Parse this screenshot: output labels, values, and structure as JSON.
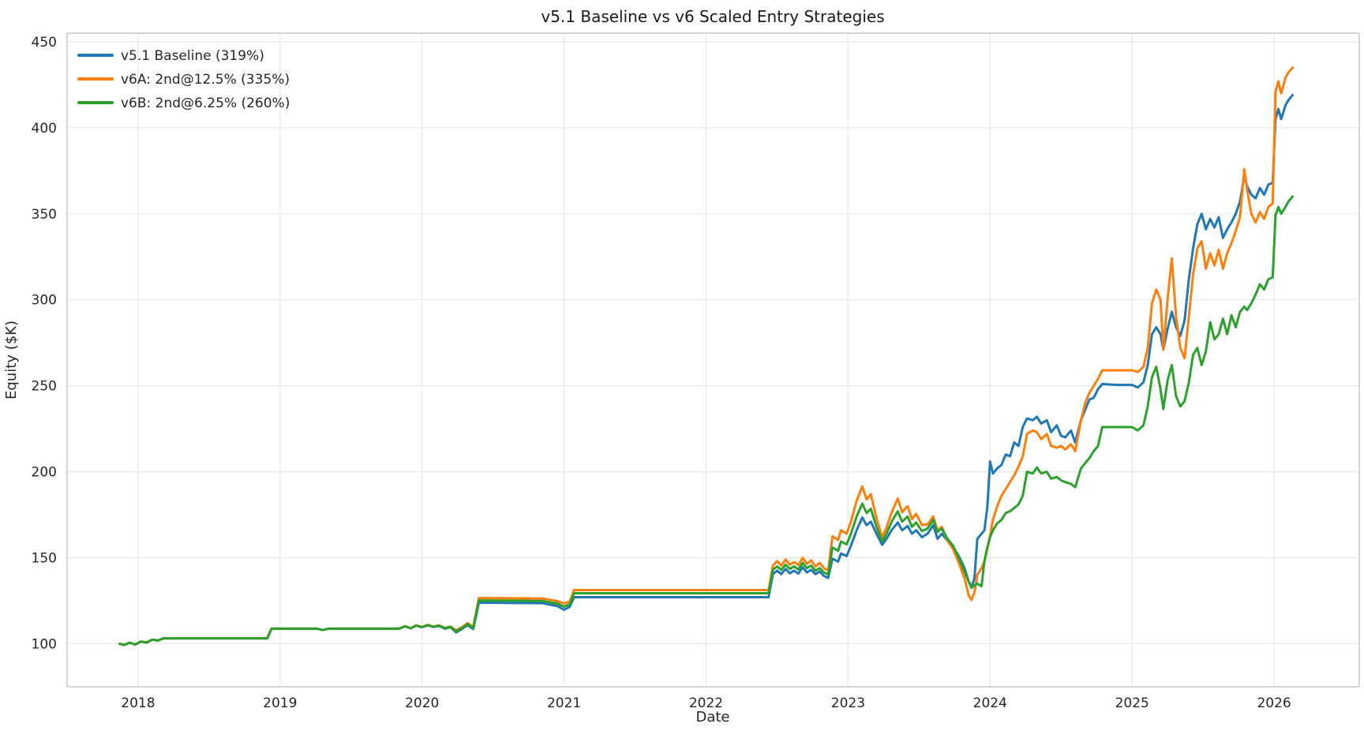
{
  "chart_data": {
    "type": "line",
    "title": "v5.1 Baseline vs v6 Scaled Entry Strategies",
    "xlabel": "Date",
    "ylabel": "Equity ($K)",
    "x_ticks": [
      2018,
      2019,
      2020,
      2021,
      2022,
      2023,
      2024,
      2025,
      2026
    ],
    "y_ticks": [
      100,
      150,
      200,
      250,
      300,
      350,
      400,
      450
    ],
    "xlim": [
      2017.5,
      2026.6
    ],
    "ylim": [
      75,
      455
    ],
    "grid": true,
    "legend_position": "upper-left",
    "x": [
      2017.87,
      2017.9,
      2017.94,
      2017.98,
      2018.02,
      2018.06,
      2018.1,
      2018.14,
      2018.18,
      2018.5,
      2018.91,
      2018.94,
      2019.26,
      2019.3,
      2019.34,
      2019.84,
      2019.88,
      2019.92,
      2019.96,
      2020.0,
      2020.04,
      2020.08,
      2020.12,
      2020.16,
      2020.2,
      2020.24,
      2020.28,
      2020.32,
      2020.36,
      2020.4,
      2020.6,
      2020.85,
      2020.95,
      2021.0,
      2021.04,
      2021.07,
      2021.5,
      2022.0,
      2022.44,
      2022.47,
      2022.5,
      2022.53,
      2022.56,
      2022.59,
      2022.62,
      2022.65,
      2022.68,
      2022.71,
      2022.74,
      2022.77,
      2022.8,
      2022.83,
      2022.86,
      2022.89,
      2022.93,
      2022.95,
      2022.99,
      2023.02,
      2023.06,
      2023.1,
      2023.13,
      2023.16,
      2023.2,
      2023.24,
      2023.27,
      2023.31,
      2023.35,
      2023.38,
      2023.42,
      2023.45,
      2023.48,
      2023.52,
      2023.56,
      2023.6,
      2023.63,
      2023.66,
      2023.7,
      2023.74,
      2023.78,
      2023.82,
      2023.85,
      2023.87,
      2023.89,
      2023.91,
      2023.94,
      2023.96,
      2023.98,
      2024.0,
      2024.02,
      2024.05,
      2024.08,
      2024.11,
      2024.14,
      2024.17,
      2024.2,
      2024.23,
      2024.26,
      2024.3,
      2024.33,
      2024.36,
      2024.4,
      2024.43,
      2024.47,
      2024.5,
      2024.53,
      2024.57,
      2024.6,
      2024.64,
      2024.67,
      2024.7,
      2024.73,
      2024.76,
      2024.79,
      2024.9,
      2025.0,
      2025.04,
      2025.08,
      2025.11,
      2025.14,
      2025.17,
      2025.2,
      2025.22,
      2025.25,
      2025.28,
      2025.31,
      2025.34,
      2025.37,
      2025.4,
      2025.43,
      2025.46,
      2025.49,
      2025.52,
      2025.55,
      2025.58,
      2025.61,
      2025.64,
      2025.67,
      2025.7,
      2025.73,
      2025.76,
      2025.79,
      2025.81,
      2025.84,
      2025.87,
      2025.9,
      2025.93,
      2025.96,
      2025.99,
      2026.01,
      2026.03,
      2026.05,
      2026.08,
      2026.1,
      2026.13
    ],
    "series": [
      {
        "name": "v5.1 Baseline (319%)",
        "color": "#1f77b4",
        "values": [
          100,
          99.3,
          100.6,
          99.6,
          101.3,
          100.7,
          102.4,
          101.9,
          103.2,
          103.2,
          103.2,
          108.8,
          108.8,
          108.0,
          108.8,
          108.8,
          110.2,
          109.0,
          110.6,
          109.6,
          110.8,
          109.8,
          110.4,
          108.8,
          109.6,
          106.6,
          108.6,
          110.8,
          108.6,
          123.9,
          123.8,
          123.6,
          122.0,
          119.8,
          121.5,
          127.1,
          127.1,
          127.1,
          127.1,
          140.5,
          142.5,
          140.5,
          143.5,
          141.0,
          142.5,
          140.8,
          144.5,
          141.5,
          143.0,
          140.5,
          142.0,
          139.5,
          138.3,
          149.5,
          147.8,
          152.5,
          151.0,
          157.0,
          166.0,
          173.4,
          169.0,
          171.0,
          164.0,
          157.5,
          161.0,
          166.5,
          170.5,
          166.0,
          168.5,
          164.0,
          166.0,
          162.0,
          164.0,
          169.0,
          161.0,
          164.0,
          160.0,
          156.0,
          151.0,
          144.0,
          136.0,
          133.0,
          138.0,
          161.0,
          164.0,
          166.0,
          179.0,
          206.0,
          199.0,
          202.0,
          204.0,
          210.0,
          209.0,
          217.0,
          215.0,
          226.0,
          231.0,
          230.0,
          232.0,
          228.0,
          230.0,
          223.0,
          227.0,
          221.0,
          220.0,
          224.0,
          217.0,
          230.0,
          236.0,
          242.0,
          243.0,
          248.0,
          251.0,
          250.5,
          250.5,
          249.0,
          252.0,
          262.0,
          280.0,
          284.0,
          280.0,
          271.0,
          283.0,
          293.0,
          284.0,
          279.0,
          288.0,
          312.0,
          330.0,
          344.0,
          350.0,
          341.0,
          347.0,
          342.0,
          348.0,
          336.0,
          341.0,
          345.0,
          350.0,
          357.0,
          372.0,
          366.0,
          361.0,
          359.0,
          365.0,
          361.0,
          367.0,
          368.0,
          405.0,
          411.0,
          405.0,
          413.0,
          416.0,
          419.0
        ]
      },
      {
        "name": "v6A: 2nd@12.5% (335%)",
        "color": "#ff7f0e",
        "values": [
          100,
          99.3,
          100.6,
          99.6,
          101.3,
          100.7,
          102.4,
          101.9,
          103.2,
          103.2,
          103.2,
          108.8,
          108.8,
          108.0,
          108.8,
          108.8,
          110.3,
          109.1,
          110.7,
          109.8,
          111.0,
          110.0,
          110.7,
          109.2,
          110.0,
          107.8,
          109.6,
          112.0,
          109.9,
          126.6,
          126.5,
          126.3,
          124.9,
          123.4,
          124.6,
          131.2,
          131.2,
          131.2,
          131.2,
          145.5,
          148.0,
          145.5,
          149.0,
          146.0,
          147.5,
          145.8,
          150.0,
          146.5,
          148.5,
          145.0,
          147.0,
          144.0,
          142.5,
          162.5,
          160.3,
          166.0,
          164.0,
          171.0,
          183.0,
          191.5,
          184.0,
          187.0,
          173.0,
          162.0,
          167.5,
          177.0,
          184.5,
          176.5,
          180.0,
          172.5,
          175.5,
          169.0,
          169.5,
          174.0,
          166.0,
          168.0,
          160.0,
          155.0,
          147.0,
          138.0,
          128.0,
          125.5,
          130.0,
          140.0,
          144.0,
          148.0,
          155.0,
          163.0,
          172.0,
          180.0,
          186.0,
          190.0,
          194.0,
          198.0,
          203.0,
          209.0,
          222.0,
          224.0,
          223.0,
          219.0,
          222.0,
          215.0,
          214.0,
          215.0,
          213.0,
          216.0,
          212.0,
          230.0,
          240.0,
          246.0,
          250.0,
          254.0,
          259.0,
          259.0,
          259.0,
          258.0,
          261.0,
          272.0,
          298.0,
          306.0,
          300.0,
          271.0,
          300.0,
          324.0,
          290.0,
          272.0,
          266.0,
          290.0,
          315.0,
          330.0,
          334.0,
          318.0,
          327.0,
          320.0,
          329.0,
          318.0,
          327.0,
          333.0,
          340.0,
          348.0,
          376.0,
          364.0,
          350.0,
          345.0,
          351.0,
          347.0,
          354.0,
          356.0,
          421.0,
          427.0,
          420.0,
          429.0,
          432.0,
          435.0
        ]
      },
      {
        "name": "v6B: 2nd@6.25% (260%)",
        "color": "#2ca02c",
        "values": [
          100,
          99.3,
          100.6,
          99.6,
          101.3,
          100.7,
          102.4,
          101.9,
          103.2,
          103.2,
          103.2,
          108.8,
          108.8,
          108.0,
          108.8,
          108.8,
          110.2,
          109.0,
          110.6,
          109.7,
          110.9,
          109.9,
          110.5,
          109.0,
          109.8,
          107.2,
          109.1,
          111.4,
          109.3,
          125.2,
          125.1,
          124.9,
          123.4,
          121.6,
          123.0,
          129.4,
          129.4,
          129.4,
          129.4,
          143.0,
          145.0,
          143.0,
          146.0,
          143.5,
          145.0,
          143.2,
          147.0,
          144.0,
          145.5,
          142.5,
          144.0,
          141.5,
          140.3,
          156.0,
          154.0,
          159.5,
          157.8,
          164.0,
          174.0,
          181.5,
          176.0,
          178.5,
          168.0,
          159.5,
          164.0,
          171.5,
          177.0,
          171.0,
          174.0,
          168.0,
          170.5,
          165.5,
          167.0,
          172.0,
          165.0,
          167.0,
          161.0,
          157.0,
          150.0,
          142.0,
          136.0,
          132.5,
          134.0,
          135.0,
          133.5,
          148.0,
          156.0,
          162.0,
          166.0,
          170.0,
          172.0,
          176.0,
          177.0,
          179.0,
          181.0,
          186.0,
          200.0,
          199.0,
          202.5,
          199.0,
          200.0,
          196.0,
          197.0,
          195.0,
          194.0,
          193.0,
          191.0,
          202.0,
          205.0,
          208.0,
          212.0,
          215.0,
          226.0,
          226.0,
          226.0,
          224.0,
          227.0,
          238.0,
          255.0,
          261.0,
          248.0,
          236.5,
          253.0,
          262.0,
          244.0,
          238.0,
          241.0,
          252.0,
          268.0,
          272.0,
          262.0,
          270.0,
          287.0,
          277.0,
          280.0,
          289.0,
          280.0,
          291.0,
          284.0,
          293.0,
          296.0,
          294.0,
          298.0,
          303.0,
          309.0,
          306.0,
          312.0,
          313.0,
          349.0,
          354.0,
          350.0,
          354.0,
          357.0,
          360.0
        ]
      }
    ]
  }
}
